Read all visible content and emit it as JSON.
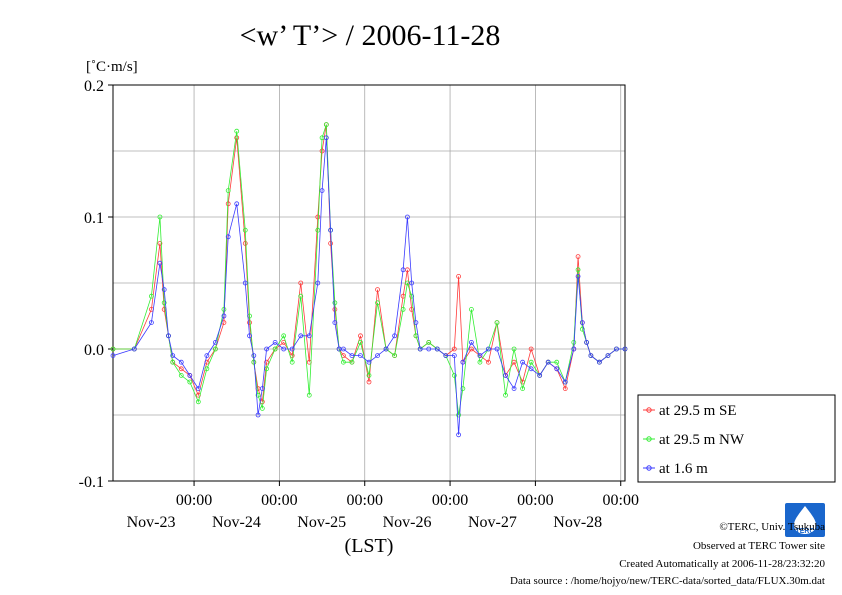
{
  "chart_data": {
    "type": "line",
    "title": "<w’ T’> / 2006-11-28",
    "ylabel": "[˚C·m/s]",
    "xlabel": "(LST)",
    "ylim": [
      -0.1,
      0.2
    ],
    "yticks": [
      {
        "value": 0.2,
        "label": "0.2"
      },
      {
        "value": 0.1,
        "label": "0.1"
      },
      {
        "value": 0.0,
        "label": "0.0"
      },
      {
        "value": -0.1,
        "label": "-0.1"
      }
    ],
    "xlim_days": [
      "Nov-23",
      "Nov-29"
    ],
    "xticks": [
      {
        "time": "00:00",
        "date": "Nov-23"
      },
      {
        "time": "00:00",
        "date": "Nov-24"
      },
      {
        "time": "00:00",
        "date": "Nov-25"
      },
      {
        "time": "00:00",
        "date": "Nov-26"
      },
      {
        "time": "00:00",
        "date": "Nov-27"
      },
      {
        "time": "00:00",
        "date": "Nov-28"
      }
    ],
    "grid": true,
    "legend_position": "right, below plot area",
    "series": [
      {
        "name": "at 29.5 m SE",
        "color": "#ff3b3b",
        "x_days": [
          0.0,
          0.25,
          0.45,
          0.55,
          0.6,
          0.65,
          0.7,
          0.8,
          0.9,
          1.0,
          1.1,
          1.2,
          1.3,
          1.35,
          1.45,
          1.55,
          1.6,
          1.65,
          1.7,
          1.75,
          1.8,
          1.9,
          2.0,
          2.1,
          2.2,
          2.3,
          2.4,
          2.45,
          2.5,
          2.55,
          2.6,
          2.65,
          2.7,
          2.8,
          2.9,
          3.0,
          3.1,
          3.2,
          3.3,
          3.4,
          3.45,
          3.5,
          3.55,
          3.6,
          3.7,
          3.8,
          3.9,
          4.0,
          4.05,
          4.1,
          4.2,
          4.3,
          4.4,
          4.5,
          4.6,
          4.7,
          4.8,
          4.9,
          5.0,
          5.1,
          5.2,
          5.3,
          5.4,
          5.45,
          5.5,
          5.55,
          5.6,
          5.7,
          5.8,
          5.9,
          6.0
        ],
        "values": [
          0.0,
          0.0,
          0.03,
          0.08,
          0.03,
          0.01,
          -0.01,
          -0.015,
          -0.02,
          -0.035,
          -0.01,
          0.0,
          0.02,
          0.11,
          0.16,
          0.08,
          0.02,
          -0.01,
          -0.03,
          -0.04,
          -0.01,
          0.0,
          0.005,
          -0.005,
          0.05,
          -0.01,
          0.1,
          0.15,
          0.17,
          0.08,
          0.03,
          0.0,
          -0.005,
          -0.01,
          0.01,
          -0.025,
          0.045,
          0.0,
          -0.005,
          0.04,
          0.06,
          0.03,
          0.01,
          0.0,
          0.005,
          0.0,
          -0.005,
          0.0,
          0.055,
          -0.01,
          0.0,
          -0.005,
          -0.01,
          0.02,
          -0.02,
          -0.01,
          -0.025,
          0.0,
          -0.02,
          -0.01,
          -0.015,
          -0.03,
          0.0,
          0.07,
          0.02,
          0.005,
          -0.005,
          -0.01,
          -0.005,
          0.0,
          0.0
        ]
      },
      {
        "name": "at 29.5 m NW",
        "color": "#33ee33",
        "x_days": [
          0.0,
          0.25,
          0.45,
          0.55,
          0.6,
          0.65,
          0.7,
          0.8,
          0.9,
          1.0,
          1.1,
          1.2,
          1.3,
          1.35,
          1.45,
          1.55,
          1.6,
          1.65,
          1.7,
          1.75,
          1.8,
          1.9,
          2.0,
          2.1,
          2.2,
          2.3,
          2.4,
          2.45,
          2.5,
          2.55,
          2.6,
          2.65,
          2.7,
          2.8,
          2.9,
          3.0,
          3.1,
          3.2,
          3.3,
          3.4,
          3.45,
          3.5,
          3.55,
          3.6,
          3.7,
          3.8,
          3.9,
          4.0,
          4.05,
          4.1,
          4.2,
          4.3,
          4.4,
          4.5,
          4.6,
          4.7,
          4.8,
          4.9,
          5.0,
          5.1,
          5.2,
          5.3,
          5.4,
          5.45,
          5.5,
          5.55,
          5.6,
          5.7,
          5.8,
          5.9,
          6.0
        ],
        "values": [
          0.0,
          0.0,
          0.04,
          0.1,
          0.035,
          0.01,
          -0.01,
          -0.02,
          -0.025,
          -0.04,
          -0.015,
          0.0,
          0.03,
          0.12,
          0.165,
          0.09,
          0.025,
          -0.01,
          -0.035,
          -0.045,
          -0.015,
          0.0,
          0.01,
          -0.01,
          0.04,
          -0.035,
          0.09,
          0.16,
          0.17,
          0.09,
          0.035,
          0.0,
          -0.01,
          -0.01,
          0.005,
          -0.02,
          0.035,
          0.0,
          -0.005,
          0.03,
          0.05,
          0.04,
          0.01,
          0.0,
          0.005,
          0.0,
          -0.005,
          -0.02,
          -0.05,
          -0.03,
          0.03,
          -0.01,
          0.0,
          0.02,
          -0.035,
          0.0,
          -0.03,
          -0.01,
          -0.02,
          -0.01,
          -0.01,
          -0.025,
          0.005,
          0.06,
          0.015,
          0.005,
          -0.005,
          -0.01,
          -0.005,
          0.0,
          0.0
        ]
      },
      {
        "name": "at 1.6 m",
        "color": "#3b3bff",
        "x_days": [
          0.0,
          0.25,
          0.45,
          0.55,
          0.6,
          0.65,
          0.7,
          0.8,
          0.9,
          1.0,
          1.1,
          1.2,
          1.3,
          1.35,
          1.45,
          1.55,
          1.6,
          1.65,
          1.7,
          1.75,
          1.8,
          1.9,
          2.0,
          2.1,
          2.2,
          2.3,
          2.4,
          2.45,
          2.5,
          2.55,
          2.6,
          2.65,
          2.7,
          2.8,
          2.9,
          3.0,
          3.1,
          3.2,
          3.3,
          3.4,
          3.45,
          3.5,
          3.55,
          3.6,
          3.7,
          3.8,
          3.9,
          4.0,
          4.05,
          4.1,
          4.2,
          4.3,
          4.4,
          4.5,
          4.6,
          4.7,
          4.8,
          4.9,
          5.0,
          5.1,
          5.2,
          5.3,
          5.4,
          5.45,
          5.5,
          5.55,
          5.6,
          5.7,
          5.8,
          5.9,
          6.0
        ],
        "values": [
          -0.005,
          0.0,
          0.02,
          0.065,
          0.045,
          0.01,
          -0.005,
          -0.01,
          -0.02,
          -0.03,
          -0.005,
          0.005,
          0.025,
          0.085,
          0.11,
          0.05,
          0.01,
          -0.005,
          -0.05,
          -0.03,
          0.0,
          0.005,
          0.0,
          0.0,
          0.01,
          0.01,
          0.05,
          0.12,
          0.16,
          0.09,
          0.02,
          0.0,
          0.0,
          -0.005,
          -0.005,
          -0.01,
          -0.005,
          0.0,
          0.01,
          0.06,
          0.1,
          0.05,
          0.02,
          0.0,
          0.0,
          0.0,
          -0.005,
          -0.005,
          -0.065,
          -0.01,
          0.005,
          -0.005,
          0.0,
          0.0,
          -0.02,
          -0.03,
          -0.01,
          -0.015,
          -0.02,
          -0.01,
          -0.015,
          -0.025,
          0.0,
          0.055,
          0.02,
          0.005,
          -0.005,
          -0.01,
          -0.005,
          0.0,
          0.0
        ]
      }
    ]
  },
  "footer": {
    "copyright": "©TERC, Univ. Tsukuba",
    "observed": "Observed at TERC Tower site",
    "created": "Created Automatically at 2006-11-28/23:32:20",
    "source": "Data source : /home/hojyo/new/TERC-data/sorted_data/FLUX.30m.dat",
    "logo_text": "TERC"
  }
}
